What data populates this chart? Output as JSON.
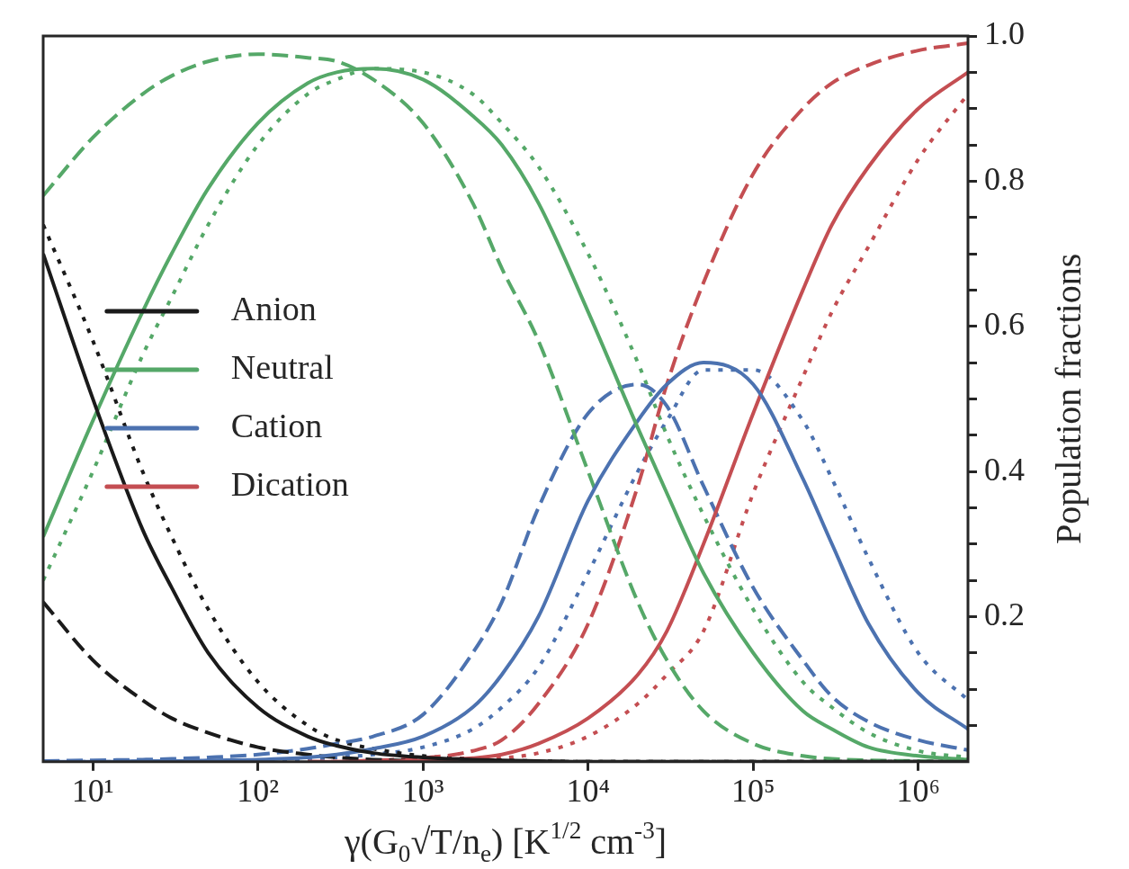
{
  "chart_data": {
    "type": "line",
    "xlabel": "γ(G$_{0}$√T/n$_{e}$) [K$^{1/2}$ cm$^{-3}$]",
    "ylabel": "Population fractions",
    "log": "x",
    "xlim": [
      5,
      2000000
    ],
    "xticks": [
      {
        "value": 10,
        "label": "10¹"
      },
      {
        "value": 100,
        "label": "10²"
      },
      {
        "value": 1000,
        "label": "10³"
      },
      {
        "value": 10000,
        "label": "10⁴"
      },
      {
        "value": 100000,
        "label": "10⁵"
      },
      {
        "value": 1000000,
        "label": "10⁶"
      }
    ],
    "ylim": [
      0,
      1
    ],
    "yticks": [
      {
        "value": 0.05,
        "label": null
      },
      {
        "value": 0.1,
        "label": null
      },
      {
        "value": 0.15,
        "label": null
      },
      0.2,
      {
        "value": 0.25,
        "label": null
      },
      {
        "value": 0.3,
        "label": null
      },
      {
        "value": 0.35,
        "label": null
      },
      0.4,
      {
        "value": 0.45,
        "label": null
      },
      {
        "value": 0.5,
        "label": null
      },
      {
        "value": 0.55,
        "label": null
      },
      0.6,
      {
        "value": 0.65,
        "label": null
      },
      {
        "value": 0.7,
        "label": null
      },
      {
        "value": 0.75,
        "label": null
      },
      0.8,
      {
        "value": 0.85,
        "label": null
      },
      {
        "value": 0.9,
        "label": null
      },
      {
        "value": 0.95,
        "label": null
      },
      {
        "value": 1.0,
        "label": "1.0"
      }
    ],
    "legend": "left",
    "marker": "none",
    "x": [
      5,
      10,
      20,
      30,
      50,
      100,
      200,
      300,
      500,
      1000,
      2000,
      3000,
      5000,
      10000,
      20000,
      30000,
      50000,
      100000,
      200000,
      300000,
      500000,
      1000000,
      2000000
    ],
    "series": [
      {
        "name": "Anion",
        "color": "#1a1a1a",
        "line_style": "solid",
        "values": [
          0.7,
          0.5,
          0.32,
          0.24,
          0.15,
          0.075,
          0.035,
          0.022,
          0.012,
          0.006,
          0.003,
          0.002,
          0.001,
          0,
          0,
          0,
          0,
          0,
          0,
          0,
          0,
          0,
          0
        ]
      },
      {
        "name": "Neutral",
        "color": "#55a868",
        "line_style": "solid",
        "values": [
          0.31,
          0.47,
          0.62,
          0.7,
          0.79,
          0.88,
          0.935,
          0.95,
          0.955,
          0.94,
          0.89,
          0.85,
          0.77,
          0.62,
          0.46,
          0.37,
          0.26,
          0.15,
          0.07,
          0.045,
          0.02,
          0.008,
          0.003
        ]
      },
      {
        "name": "Cation",
        "color": "#4c72b0",
        "line_style": "solid",
        "values": [
          0,
          0,
          0.001,
          0.001,
          0.002,
          0.003,
          0.006,
          0.01,
          0.018,
          0.035,
          0.075,
          0.12,
          0.2,
          0.36,
          0.47,
          0.52,
          0.55,
          0.52,
          0.39,
          0.3,
          0.19,
          0.095,
          0.045
        ]
      },
      {
        "name": "Dication",
        "color": "#c44e52",
        "line_style": "solid",
        "values": [
          null,
          null,
          null,
          null,
          null,
          null,
          0,
          0,
          0,
          0.002,
          0.005,
          0.01,
          0.025,
          0.06,
          0.12,
          0.18,
          0.3,
          0.48,
          0.65,
          0.74,
          0.82,
          0.9,
          0.95
        ]
      },
      {
        "color": "#1a1a1a",
        "line_style": "dashed",
        "values": [
          0.22,
          0.14,
          0.085,
          0.06,
          0.04,
          0.02,
          0.01,
          0.006,
          0.003,
          0.001,
          0,
          0,
          0,
          0,
          0,
          0,
          0,
          0,
          0,
          0,
          0,
          0,
          0
        ]
      },
      {
        "color": "#55a868",
        "line_style": "dashed",
        "values": [
          0.78,
          0.86,
          0.92,
          0.945,
          0.965,
          0.975,
          0.97,
          0.965,
          0.94,
          0.88,
          0.77,
          0.68,
          0.58,
          0.4,
          0.22,
          0.14,
          0.07,
          0.025,
          0.008,
          0.004,
          0.002,
          0.001,
          0
        ]
      },
      {
        "color": "#4c72b0",
        "line_style": "dashed",
        "values": [
          0.001,
          0.002,
          0.003,
          0.004,
          0.006,
          0.01,
          0.018,
          0.025,
          0.035,
          0.065,
          0.15,
          0.22,
          0.35,
          0.48,
          0.52,
          0.49,
          0.38,
          0.24,
          0.14,
          0.09,
          0.055,
          0.03,
          0.016
        ]
      },
      {
        "color": "#c44e52",
        "line_style": "dashed",
        "values": [
          null,
          null,
          null,
          null,
          null,
          null,
          0,
          0,
          0.002,
          0.005,
          0.015,
          0.03,
          0.08,
          0.19,
          0.38,
          0.52,
          0.66,
          0.81,
          0.9,
          0.935,
          0.96,
          0.98,
          0.99
        ]
      },
      {
        "color": "#1a1a1a",
        "line_style": "dotted",
        "values": [
          0.74,
          0.58,
          0.4,
          0.31,
          0.21,
          0.11,
          0.05,
          0.03,
          0.018,
          0.008,
          0.004,
          0.002,
          0.001,
          0,
          0,
          0,
          0,
          0,
          0,
          0,
          0,
          0,
          0
        ]
      },
      {
        "color": "#55a868",
        "line_style": "dotted",
        "values": [
          0.25,
          0.4,
          0.56,
          0.64,
          0.74,
          0.85,
          0.92,
          0.94,
          0.955,
          0.95,
          0.92,
          0.88,
          0.82,
          0.7,
          0.55,
          0.45,
          0.34,
          0.21,
          0.11,
          0.075,
          0.04,
          0.015,
          0.006
        ]
      },
      {
        "color": "#4c72b0",
        "line_style": "dotted",
        "values": [
          0,
          0,
          0,
          0.001,
          0.001,
          0.002,
          0.004,
          0.006,
          0.01,
          0.02,
          0.045,
          0.075,
          0.13,
          0.26,
          0.4,
          0.47,
          0.54,
          0.54,
          0.47,
          0.39,
          0.28,
          0.15,
          0.085
        ]
      },
      {
        "color": "#c44e52",
        "line_style": "dotted",
        "values": [
          null,
          null,
          null,
          null,
          null,
          null,
          0,
          0,
          0,
          0.001,
          0.003,
          0.005,
          0.012,
          0.035,
          0.08,
          0.12,
          0.18,
          0.37,
          0.53,
          0.62,
          0.71,
          0.83,
          0.92
        ]
      }
    ]
  }
}
